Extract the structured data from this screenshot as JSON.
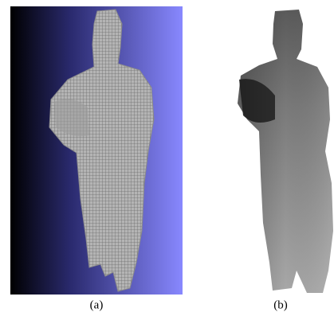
{
  "captions": {
    "left": "(a)",
    "right": "(b)"
  }
}
